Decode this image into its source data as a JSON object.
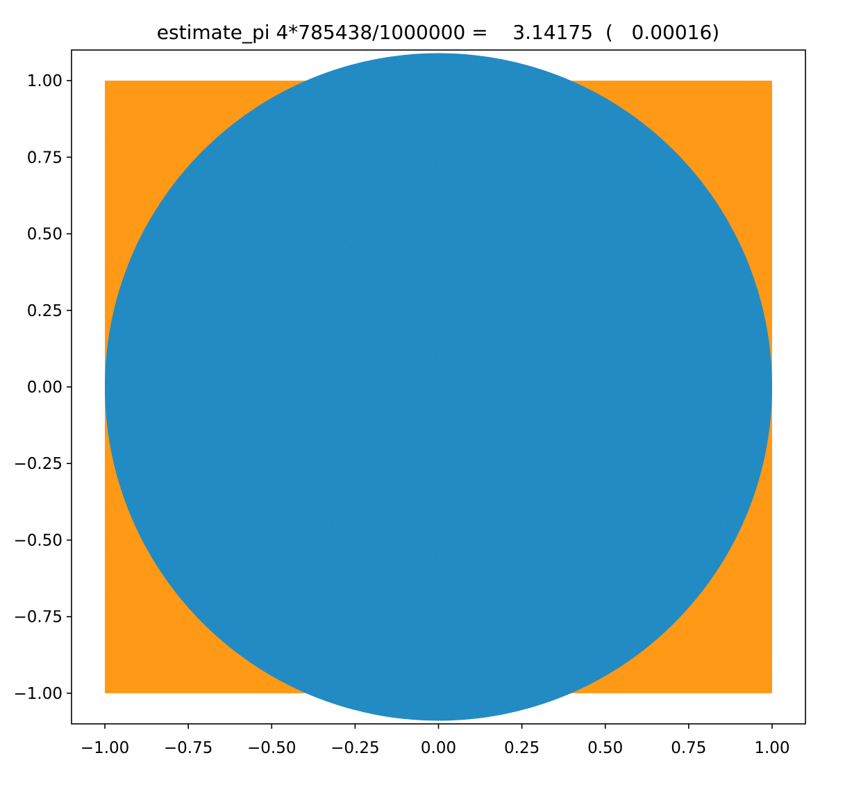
{
  "chart_data": {
    "type": "scatter",
    "title": "estimate_pi 4*785438/1000000 =    3.14175  (   0.00016)",
    "xlabel": "",
    "ylabel": "",
    "xlim": [
      -1.1,
      1.1
    ],
    "ylim": [
      -1.1,
      1.1
    ],
    "grid": false,
    "legend": "none",
    "total_points": 1000000,
    "inside_points": 785438,
    "estimate": 3.14175,
    "error": 0.00016,
    "x_ticks": [
      -1.0,
      -0.75,
      -0.5,
      -0.25,
      0.0,
      0.25,
      0.5,
      0.75,
      1.0
    ],
    "x_tick_labels": [
      "−1.00",
      "−0.75",
      "−0.50",
      "−0.25",
      "0.00",
      "0.25",
      "0.50",
      "0.75",
      "1.00"
    ],
    "y_ticks": [
      1.0,
      0.75,
      0.5,
      0.25,
      0.0,
      -0.25,
      -0.5,
      -0.75,
      -1.0
    ],
    "y_tick_labels": [
      "1.00",
      "0.75",
      "0.50",
      "0.25",
      "0.00",
      "−0.25",
      "−0.50",
      "−0.75",
      "−1.00"
    ],
    "series": [
      {
        "color": "#ff9914",
        "region": "outside unit circle",
        "x_range": [
          -1.0,
          1.0
        ],
        "y_range": [
          -1.0,
          1.0
        ]
      },
      {
        "color": "#238bc3",
        "region": "inside unit circle",
        "center": [
          0.0,
          0.0
        ],
        "radius": 1.0
      }
    ]
  }
}
